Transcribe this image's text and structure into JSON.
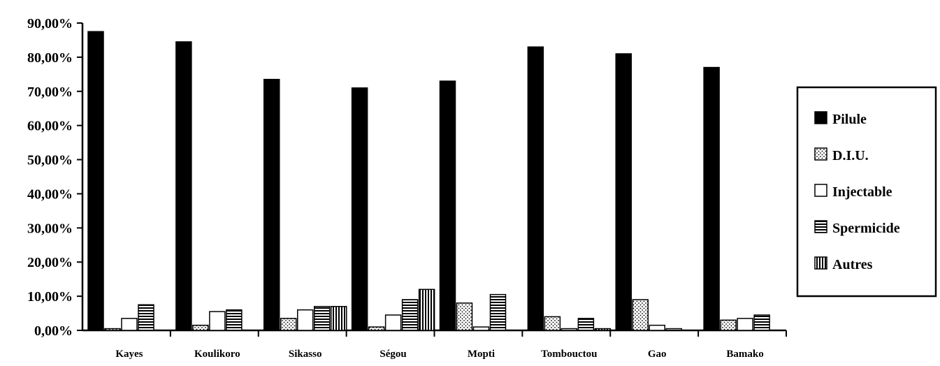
{
  "chart_data": {
    "type": "bar",
    "title": "",
    "xlabel": "",
    "ylabel": "",
    "ylim": [
      0,
      90
    ],
    "y_ticks": [
      "0,00%",
      "10,00%",
      "20,00%",
      "30,00%",
      "40,00%",
      "50,00%",
      "60,00%",
      "70,00%",
      "80,00%",
      "90,00%"
    ],
    "categories": [
      "Kayes",
      "Koulikoro",
      "Sikasso",
      "Ségou",
      "Mopti",
      "Tombouctou",
      "Gao",
      "Bamako"
    ],
    "series": [
      {
        "name": "Pilule",
        "pattern": "solid",
        "values": [
          87.5,
          84.5,
          73.5,
          71.0,
          73.0,
          83.0,
          81.0,
          77.0
        ]
      },
      {
        "name": "D.I.U.",
        "pattern": "dots",
        "values": [
          0.5,
          1.5,
          3.5,
          1.0,
          8.0,
          4.0,
          9.0,
          3.0
        ]
      },
      {
        "name": "Injectable",
        "pattern": "empty",
        "values": [
          3.5,
          5.5,
          6.0,
          4.5,
          1.0,
          0.5,
          1.5,
          3.5
        ]
      },
      {
        "name": "Spermicide",
        "pattern": "horizontal",
        "values": [
          7.5,
          6.0,
          7.0,
          9.0,
          10.5,
          3.5,
          0.5,
          4.5
        ]
      },
      {
        "name": "Autres",
        "pattern": "vertical",
        "values": [
          0.0,
          0.0,
          7.0,
          12.0,
          0.0,
          0.5,
          0.0,
          0.0
        ]
      }
    ],
    "grid": false,
    "legend_position": "right"
  }
}
